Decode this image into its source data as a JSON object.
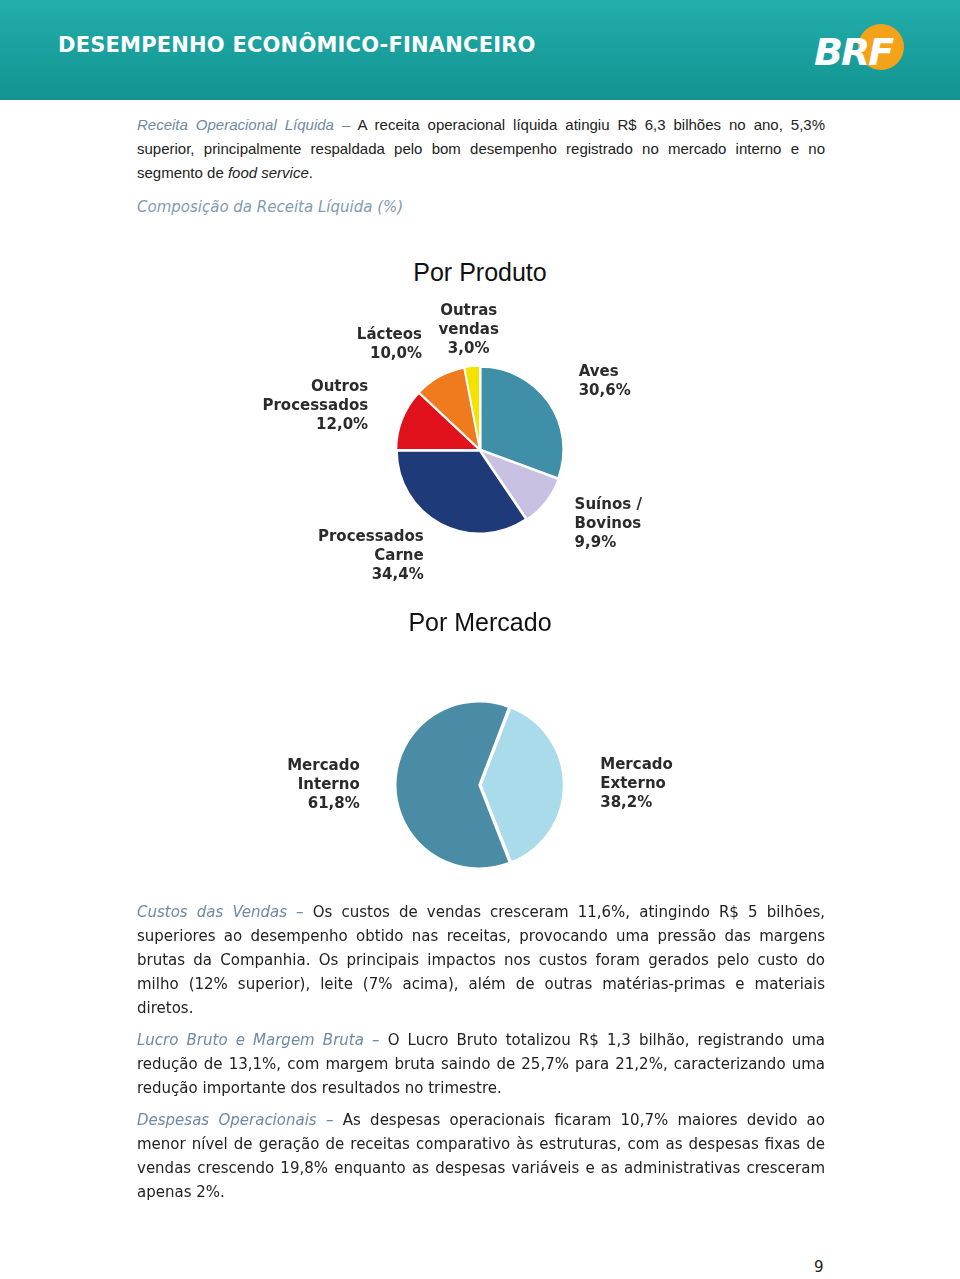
{
  "header": {
    "title": "DESEMPENHO ECONÔMICO-FINANCEIRO",
    "logo": "BRF"
  },
  "paragraphs_top": [
    {
      "lead": "Receita Operacional Líquida –",
      "runs": [
        {
          "text": "A receita operacional líquida atingiu R$ 6,3 bilhões no ano, 5,3% superior, principalmente respaldada pelo bom desempenho registrado no mercado interno e no segmento de "
        },
        {
          "text": "food service",
          "italic": true
        },
        {
          "text": "."
        }
      ]
    }
  ],
  "subtitle": "Composição da Receita Líquida (%)",
  "chart_data": [
    {
      "type": "pie",
      "title": "Por Produto",
      "categories": [
        "Aves",
        "Suínos /\nBovinos",
        "Processados\nCarne",
        "Outros\nProcessados",
        "Lácteos",
        "Outras\nvendas"
      ],
      "values": [
        30.6,
        9.9,
        34.4,
        12.0,
        10.0,
        3.0
      ],
      "value_labels": [
        "30,6%",
        "9,9%",
        "34,4%",
        "12,0%",
        "10,0%",
        "3,0%"
      ],
      "colors": [
        "#3f8fa8",
        "#c9c1e2",
        "#1f3a78",
        "#e0111b",
        "#f07a1e",
        "#f4e200"
      ],
      "data_labels": true
    },
    {
      "type": "pie",
      "title": "Por Mercado",
      "categories": [
        "Mercado\nExterno",
        "Mercado\nInterno"
      ],
      "values": [
        38.2,
        61.8
      ],
      "value_labels": [
        "38,2%",
        "61,8%"
      ],
      "colors": [
        "#a9dbea",
        "#4a8ca6"
      ],
      "data_labels": true
    }
  ],
  "paragraphs_bottom": [
    {
      "lead": "Custos das Vendas –",
      "runs": [
        {
          "text": "Os custos de vendas cresceram 11,6%, atingindo R$ 5 bilhões, superiores ao desempenho obtido nas receitas, provocando uma pressão das margens brutas da Companhia. Os principais impactos nos custos foram gerados pelo custo do milho (12% superior), leite (7% acima), além de outras matérias-primas e materiais diretos."
        }
      ]
    },
    {
      "lead": "Lucro Bruto e Margem Bruta –",
      "runs": [
        {
          "text": "O Lucro Bruto totalizou R$ 1,3 bilhão, registrando uma redução de 13,1%, com margem bruta saindo de 25,7% para 21,2%, caracterizando uma redução importante dos resultados no trimestre."
        }
      ]
    },
    {
      "lead": "Despesas Operacionais –",
      "runs": [
        {
          "text": "As despesas operacionais ficaram 10,7% maiores devido ao menor nível de geração de receitas comparativo às estruturas, com as despesas fixas de vendas crescendo 19,8% enquanto as despesas variáveis e as administrativas cresceram apenas 2%."
        }
      ]
    }
  ],
  "page_number": "9"
}
